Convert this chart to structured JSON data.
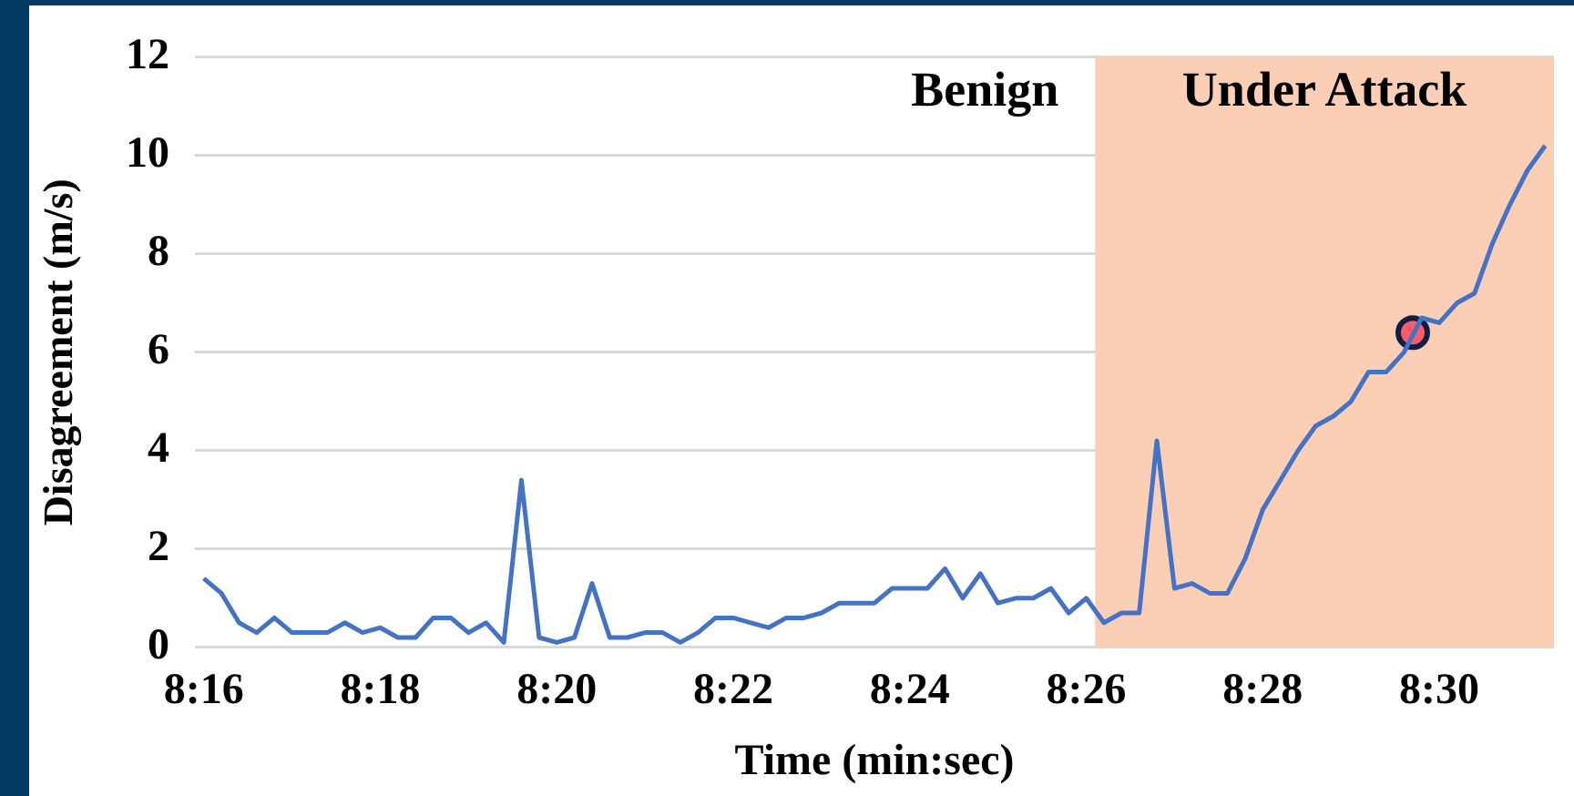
{
  "chart_data": {
    "type": "line",
    "xlabel": "Time (min:sec)",
    "ylabel": "Disagreement (m/s)",
    "x": [
      496,
      496.2,
      496.4,
      496.6,
      496.8,
      497,
      497.2,
      497.4,
      497.6,
      497.8,
      498,
      498.2,
      498.4,
      498.6,
      498.8,
      499,
      499.2,
      499.4,
      499.6,
      499.8,
      500,
      500.2,
      500.4,
      500.6,
      500.8,
      501,
      501.2,
      501.4,
      501.6,
      501.8,
      502,
      502.2,
      502.4,
      502.6,
      502.8,
      503,
      503.2,
      503.4,
      503.6,
      503.8,
      504,
      504.2,
      504.4,
      504.6,
      504.8,
      505,
      505.2,
      505.4,
      505.6,
      505.8,
      506,
      506.2,
      506.4,
      506.6,
      506.8,
      507,
      507.2,
      507.4,
      507.6,
      507.8,
      508,
      508.2,
      508.4,
      508.6,
      508.8,
      509,
      509.2,
      509.4,
      509.6,
      509.8,
      510,
      510.2,
      510.4,
      510.6,
      510.8,
      511,
      511.2
    ],
    "series": [
      {
        "color": "#4472c4",
        "values": [
          1.4,
          1.1,
          0.5,
          0.3,
          0.6,
          0.3,
          0.3,
          0.3,
          0.5,
          0.3,
          0.4,
          0.2,
          0.2,
          0.6,
          0.6,
          0.3,
          0.5,
          0.1,
          3.4,
          0.2,
          0.1,
          0.2,
          1.3,
          0.2,
          0.2,
          0.3,
          0.3,
          0.1,
          0.3,
          0.6,
          0.6,
          0.5,
          0.4,
          0.6,
          0.6,
          0.7,
          0.9,
          0.9,
          0.9,
          1.2,
          1.2,
          1.2,
          1.6,
          1.0,
          1.5,
          0.9,
          1.0,
          1.0,
          1.2,
          0.7,
          1.0,
          0.5,
          0.7,
          0.7,
          4.2,
          1.2,
          1.3,
          1.1,
          1.1,
          1.8,
          2.8,
          3.4,
          4.0,
          4.5,
          4.7,
          5.0,
          5.6,
          5.6,
          6.0,
          6.7,
          6.6,
          7.0,
          7.2,
          8.2,
          9.0,
          9.7,
          10.2
        ]
      },
      {
        "type": "scatter",
        "color": "#ff5a6a",
        "marker": "circle",
        "x": [
          509.7
        ],
        "values": [
          6.4
        ]
      }
    ],
    "xlim": [
      495.9,
      511.3
    ],
    "xticks": [
      {
        "value": 496,
        "label": "8:16"
      },
      {
        "value": 498,
        "label": "8:18"
      },
      {
        "value": 500,
        "label": "8:20"
      },
      {
        "value": 502,
        "label": "8:22"
      },
      {
        "value": 504,
        "label": "8:24"
      },
      {
        "value": 506,
        "label": "8:26"
      },
      {
        "value": 508,
        "label": "8:28"
      },
      {
        "value": 510,
        "label": "8:30"
      }
    ],
    "ylim": [
      0,
      12
    ],
    "yticks": [
      0,
      2,
      4,
      6,
      8,
      10,
      12
    ],
    "bands": [
      {
        "axis": "x",
        "from": 506.1,
        "to": 511.3,
        "label": "Under Attack",
        "color": "#fbcfb6"
      }
    ],
    "annotations": [
      "Benign"
    ],
    "grid": "y",
    "legend": false,
    "marker": "none",
    "line_style": "solid"
  }
}
